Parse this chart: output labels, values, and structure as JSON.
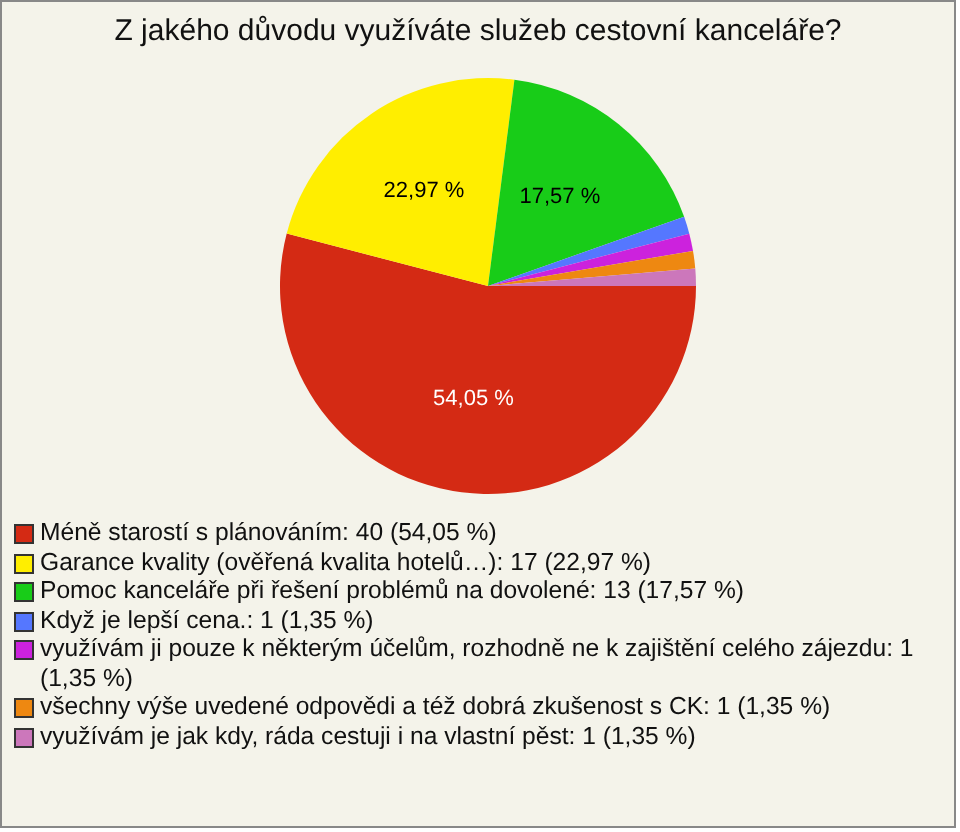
{
  "chart_data": {
    "type": "pie",
    "title": "Z jakého důvodu využíváte služeb cestovní kanceláře?",
    "categories": [
      "Méně starostí s plánováním: 40 (54,05 %)",
      "Garance kvality (ověřená kvalita hotelů…): 17 (22,97 %)",
      "Pomoc kanceláře při řešení problémů na dovolené: 13 (17,57 %)",
      "Když je lepší cena.: 1 (1,35 %)",
      "využívám ji pouze k některým účelům, rozhodně ne k zajištění celého zájezdu: 1 (1,35 %)",
      "všechny výše uvedené odpovědi a též dobrá zkušenost s CK: 1 (1,35 %)",
      "využívám je jak kdy, ráda cestuji i na vlastní pěst: 1 (1,35 %)"
    ],
    "values": [
      54.05,
      22.97,
      17.57,
      1.35,
      1.35,
      1.35,
      1.35
    ],
    "value_labels": [
      "54,05 %",
      "22,97 %",
      "17,57 %",
      null,
      null,
      null,
      null
    ],
    "colors": [
      "#d42a14",
      "#ffee00",
      "#18cc18",
      "#5577ff",
      "#cc22dd",
      "#ee8811",
      "#cc77bb"
    ],
    "legend": "bottom left"
  }
}
